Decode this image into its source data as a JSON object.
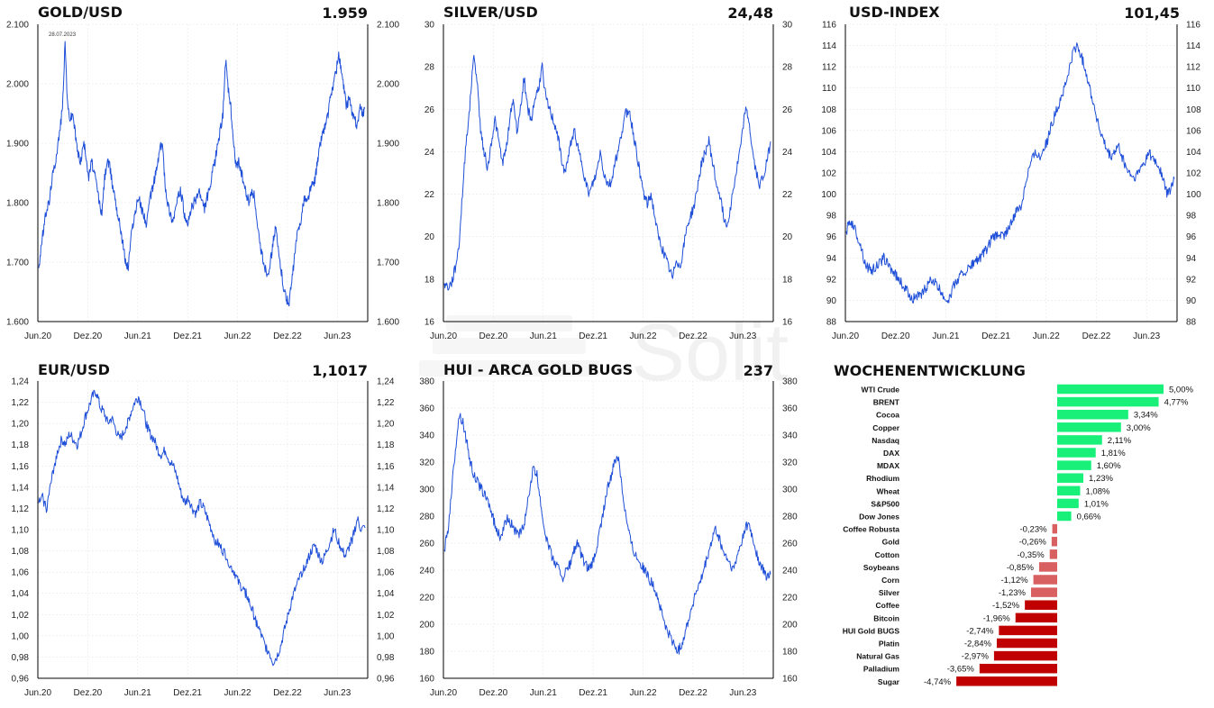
{
  "panels": [
    {
      "id": "gold",
      "title": "GOLD/USD",
      "value": "1.959"
    },
    {
      "id": "silver",
      "title": "SILVER/USD",
      "value": "24,48"
    },
    {
      "id": "usd",
      "title": "USD-INDEX",
      "value": "101,45"
    },
    {
      "id": "eur",
      "title": "EUR/USD",
      "value": "1,1017"
    },
    {
      "id": "hui",
      "title": "HUI - ARCA GOLD BUGS",
      "value": "237"
    },
    {
      "id": "weekly",
      "title": "WOCHENENTWICKLUNG",
      "value": ""
    }
  ],
  "watermark": "Solit",
  "colors": {
    "line": "#1f4fd8",
    "positive": "#19f07a",
    "negative_strong": "#c00000",
    "negative_light": "#d96060",
    "grid": "#e6e6e6"
  },
  "chart_data": [
    {
      "id": "gold",
      "type": "line",
      "title": "GOLD/USD",
      "x_ticks": [
        "Jun.20",
        "Dez.20",
        "Jun.21",
        "Dez.21",
        "Jun.22",
        "Dez.22",
        "Jun.23"
      ],
      "y_ticks": [
        "1.600",
        "1.700",
        "1.800",
        "1.900",
        "2.000",
        "2.100"
      ],
      "ylim": [
        1600,
        2100
      ],
      "annotation": "28.07.2023",
      "series": [
        {
          "values": [
            1690,
            1730,
            1760,
            1790,
            1800,
            1840,
            1860,
            1890,
            1920,
            1960,
            2067,
            1960,
            1940,
            1950,
            1910,
            1880,
            1870,
            1900,
            1880,
            1840,
            1870,
            1850,
            1830,
            1800,
            1780,
            1840,
            1870,
            1860,
            1830,
            1810,
            1780,
            1760,
            1730,
            1700,
            1690,
            1740,
            1770,
            1790,
            1810,
            1790,
            1780,
            1760,
            1800,
            1820,
            1840,
            1860,
            1890,
            1900,
            1830,
            1800,
            1780,
            1770,
            1790,
            1810,
            1820,
            1790,
            1760,
            1770,
            1790,
            1800,
            1810,
            1820,
            1800,
            1790,
            1810,
            1820,
            1850,
            1870,
            1900,
            1920,
            1950,
            2040,
            1990,
            1960,
            1900,
            1860,
            1870,
            1850,
            1830,
            1810,
            1800,
            1820,
            1810,
            1760,
            1730,
            1710,
            1690,
            1680,
            1700,
            1730,
            1760,
            1720,
            1690,
            1660,
            1640,
            1630,
            1660,
            1700,
            1740,
            1760,
            1780,
            1810,
            1800,
            1820,
            1830,
            1840,
            1870,
            1900,
            1920,
            1930,
            1950,
            1980,
            2000,
            2020,
            2050,
            2020,
            1990,
            1960,
            1980,
            1950,
            1940,
            1930,
            1960,
            1950,
            1959
          ]
        }
      ]
    },
    {
      "id": "silver",
      "type": "line",
      "title": "SILVER/USD",
      "x_ticks": [
        "Jun.20",
        "Dez.20",
        "Jun.21",
        "Dez.21",
        "Jun.22",
        "Dez.22",
        "Jun.23"
      ],
      "y_ticks": [
        "16",
        "18",
        "20",
        "22",
        "24",
        "26",
        "28",
        "30"
      ],
      "ylim": [
        16,
        30
      ],
      "series": [
        {
          "values": [
            17.8,
            17.6,
            17.8,
            18.5,
            19.5,
            22.0,
            24.5,
            26.0,
            28.5,
            27.5,
            25.0,
            24.0,
            23.2,
            24.5,
            25.5,
            24.5,
            23.5,
            24.0,
            25.5,
            26.5,
            25.0,
            26.0,
            27.5,
            26.0,
            25.5,
            26.5,
            27.0,
            28.0,
            26.5,
            26.0,
            25.5,
            25.0,
            24.0,
            23.0,
            23.5,
            24.5,
            25.0,
            24.0,
            23.5,
            22.5,
            22.0,
            22.5,
            23.0,
            24.0,
            23.0,
            22.5,
            22.5,
            23.5,
            24.0,
            25.0,
            25.8,
            26.0,
            25.0,
            24.0,
            23.0,
            22.0,
            21.5,
            22.0,
            21.0,
            20.0,
            19.5,
            19.0,
            18.5,
            18.0,
            19.0,
            18.5,
            19.5,
            20.5,
            21.0,
            21.5,
            22.5,
            23.5,
            24.0,
            24.5,
            23.5,
            22.5,
            22.0,
            21.0,
            20.5,
            21.5,
            22.5,
            23.5,
            24.5,
            26.0,
            25.5,
            24.0,
            23.0,
            22.5,
            22.8,
            23.5,
            24.48
          ]
        }
      ]
    },
    {
      "id": "usd",
      "type": "line",
      "title": "USD-INDEX",
      "x_ticks": [
        "Jun.20",
        "Dez.20",
        "Jun.21",
        "Dez.21",
        "Jun.22",
        "Dez.22",
        "Jun.23"
      ],
      "y_ticks": [
        "88",
        "90",
        "92",
        "94",
        "96",
        "98",
        "100",
        "102",
        "104",
        "106",
        "108",
        "110",
        "112",
        "114",
        "116"
      ],
      "ylim": [
        88,
        116
      ],
      "series": [
        {
          "values": [
            96.5,
            97.5,
            97.0,
            96.0,
            95.0,
            93.5,
            93.0,
            92.8,
            93.2,
            93.5,
            94.0,
            93.5,
            93.0,
            92.5,
            92.0,
            91.5,
            91.0,
            90.5,
            90.2,
            90.5,
            90.3,
            91.0,
            91.5,
            92.0,
            91.5,
            91.0,
            90.5,
            90.0,
            90.5,
            91.5,
            92.0,
            92.5,
            92.8,
            93.0,
            93.5,
            93.8,
            94.0,
            94.5,
            95.0,
            95.8,
            96.0,
            96.3,
            96.0,
            96.5,
            97.0,
            98.0,
            98.5,
            99.0,
            101.0,
            102.5,
            103.5,
            104.0,
            103.5,
            104.5,
            105.0,
            106.5,
            107.5,
            108.5,
            109.5,
            110.5,
            112.0,
            113.5,
            114.0,
            113.0,
            112.0,
            110.5,
            109.0,
            107.5,
            106.0,
            105.0,
            104.0,
            103.5,
            104.0,
            104.5,
            103.5,
            102.5,
            102.0,
            101.5,
            101.8,
            102.5,
            103.0,
            104.0,
            103.5,
            103.0,
            102.5,
            101.5,
            100.0,
            100.5,
            101.45
          ]
        }
      ]
    },
    {
      "id": "eur",
      "type": "line",
      "title": "EUR/USD",
      "x_ticks": [
        "Jun.20",
        "Dez.20",
        "Jun.21",
        "Dez.21",
        "Jun.22",
        "Dez.22",
        "Jun.23"
      ],
      "y_ticks": [
        "0,96",
        "0,98",
        "1,00",
        "1,02",
        "1,04",
        "1,06",
        "1,08",
        "1,10",
        "1,12",
        "1,14",
        "1,16",
        "1,18",
        "1,20",
        "1,22",
        "1,24"
      ],
      "ylim": [
        0.96,
        1.24
      ],
      "series": [
        {
          "values": [
            1.125,
            1.13,
            1.12,
            1.14,
            1.16,
            1.175,
            1.185,
            1.18,
            1.19,
            1.185,
            1.18,
            1.19,
            1.205,
            1.215,
            1.225,
            1.23,
            1.215,
            1.21,
            1.2,
            1.205,
            1.195,
            1.185,
            1.19,
            1.2,
            1.21,
            1.22,
            1.225,
            1.215,
            1.2,
            1.19,
            1.185,
            1.175,
            1.17,
            1.175,
            1.165,
            1.16,
            1.15,
            1.135,
            1.125,
            1.13,
            1.12,
            1.115,
            1.125,
            1.12,
            1.11,
            1.1,
            1.09,
            1.085,
            1.08,
            1.075,
            1.065,
            1.06,
            1.05,
            1.045,
            1.04,
            1.03,
            1.02,
            1.01,
            1.0,
            0.99,
            0.985,
            0.975,
            0.98,
            0.99,
            1.005,
            1.02,
            1.035,
            1.045,
            1.055,
            1.065,
            1.07,
            1.08,
            1.085,
            1.075,
            1.07,
            1.08,
            1.09,
            1.1,
            1.09,
            1.08,
            1.075,
            1.085,
            1.095,
            1.11,
            1.1,
            1.1017
          ]
        }
      ]
    },
    {
      "id": "hui",
      "type": "line",
      "title": "HUI - ARCA GOLD BUGS",
      "x_ticks": [
        "Jun.20",
        "Dez.20",
        "Jun.21",
        "Dez.21",
        "Jun.22",
        "Dez.22",
        "Jun.23"
      ],
      "y_ticks": [
        "160",
        "180",
        "200",
        "220",
        "240",
        "260",
        "280",
        "300",
        "320",
        "340",
        "360",
        "380"
      ],
      "ylim": [
        160,
        380
      ],
      "series": [
        {
          "values": [
            255,
            270,
            300,
            330,
            355,
            350,
            335,
            320,
            310,
            305,
            300,
            295,
            290,
            280,
            270,
            265,
            270,
            280,
            275,
            270,
            265,
            270,
            280,
            300,
            315,
            310,
            290,
            270,
            260,
            250,
            245,
            240,
            235,
            240,
            245,
            255,
            260,
            250,
            245,
            240,
            245,
            255,
            270,
            285,
            300,
            310,
            320,
            325,
            300,
            280,
            265,
            255,
            250,
            245,
            240,
            235,
            230,
            225,
            215,
            205,
            195,
            190,
            185,
            180,
            185,
            195,
            205,
            215,
            225,
            230,
            240,
            250,
            260,
            270,
            265,
            255,
            250,
            245,
            240,
            250,
            260,
            270,
            275,
            265,
            255,
            245,
            240,
            235,
            237
          ]
        }
      ]
    },
    {
      "id": "weekly",
      "type": "bar",
      "orientation": "horizontal",
      "title": "WOCHENENTWICKLUNG",
      "categories": [
        "WTI Crude",
        "BRENT",
        "Cocoa",
        "Copper",
        "Nasdaq",
        "DAX",
        "MDAX",
        "Rhodium",
        "Wheat",
        "S&P500",
        "Dow Jones",
        "Coffee Robusta",
        "Gold",
        "Cotton",
        "Soybeans",
        "Corn",
        "Silver",
        "Coffee",
        "Bitcoin",
        "HUI Gold BUGS",
        "Platin",
        "Natural Gas",
        "Palladium",
        "Sugar"
      ],
      "values": [
        5.0,
        4.77,
        3.34,
        3.0,
        2.11,
        1.81,
        1.6,
        1.23,
        1.08,
        1.01,
        0.66,
        -0.23,
        -0.26,
        -0.35,
        -0.85,
        -1.12,
        -1.23,
        -1.52,
        -1.96,
        -2.74,
        -2.84,
        -2.97,
        -3.65,
        -4.74
      ],
      "labels": [
        "5,00%",
        "4,77%",
        "3,34%",
        "3,00%",
        "2,11%",
        "1,81%",
        "1,60%",
        "1,23%",
        "1,08%",
        "1,01%",
        "0,66%",
        "-0,23%",
        "-0,26%",
        "-0,35%",
        "-0,85%",
        "-1,12%",
        "-1,23%",
        "-1,52%",
        "-1,96%",
        "-2,74%",
        "-2,84%",
        "-2,97%",
        "-3,65%",
        "-4,74%"
      ]
    }
  ]
}
